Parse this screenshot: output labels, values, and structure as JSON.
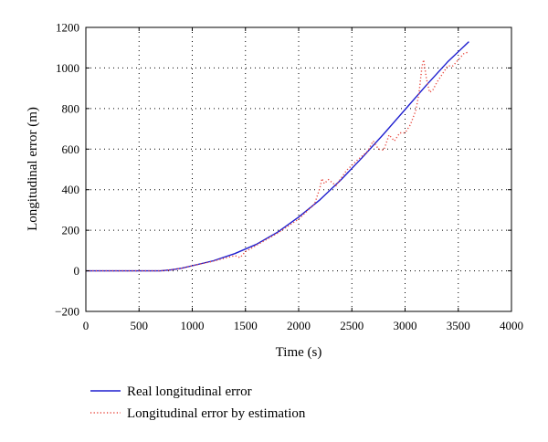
{
  "chart_data": {
    "type": "line",
    "title": "",
    "xlabel": "Time (s)",
    "ylabel": "Longitudinal error (m)",
    "xlim": [
      0,
      4000
    ],
    "ylim": [
      -200,
      1200
    ],
    "xticks": [
      0,
      500,
      1000,
      1500,
      2000,
      2500,
      3000,
      3500,
      4000
    ],
    "yticks": [
      -200,
      0,
      200,
      400,
      600,
      800,
      1000,
      1200
    ],
    "grid": true,
    "legend_position": "below plot, left",
    "series": [
      {
        "name": "Real longitudinal error",
        "color": "#1f1fcf",
        "style": "solid",
        "x": [
          0,
          700,
          800,
          900,
          1000,
          1200,
          1400,
          1600,
          1800,
          2000,
          2200,
          2400,
          2600,
          2800,
          3000,
          3200,
          3400,
          3600
        ],
        "y": [
          0,
          0,
          5,
          13,
          25,
          50,
          85,
          130,
          190,
          265,
          350,
          450,
          560,
          675,
          795,
          915,
          1030,
          1130
        ]
      },
      {
        "name": "Longitudinal error by estimation",
        "color": "#e8463c",
        "style": "dotted",
        "x": [
          0,
          700,
          800,
          900,
          1000,
          1200,
          1400,
          1450,
          1500,
          1600,
          1800,
          2000,
          2150,
          2200,
          2220,
          2240,
          2280,
          2350,
          2450,
          2550,
          2650,
          2700,
          2750,
          2800,
          2850,
          2900,
          2950,
          3000,
          3050,
          3100,
          3130,
          3160,
          3175,
          3200,
          3230,
          3260,
          3300,
          3350,
          3400,
          3450,
          3500,
          3550,
          3600
        ],
        "y": [
          0,
          0,
          5,
          13,
          25,
          48,
          75,
          65,
          95,
          125,
          185,
          255,
          330,
          410,
          455,
          430,
          450,
          420,
          495,
          545,
          590,
          640,
          600,
          595,
          670,
          640,
          680,
          680,
          720,
          790,
          870,
          1010,
          1040,
          950,
          880,
          890,
          930,
          970,
          1010,
          1010,
          1040,
          1070,
          1080
        ]
      }
    ]
  }
}
